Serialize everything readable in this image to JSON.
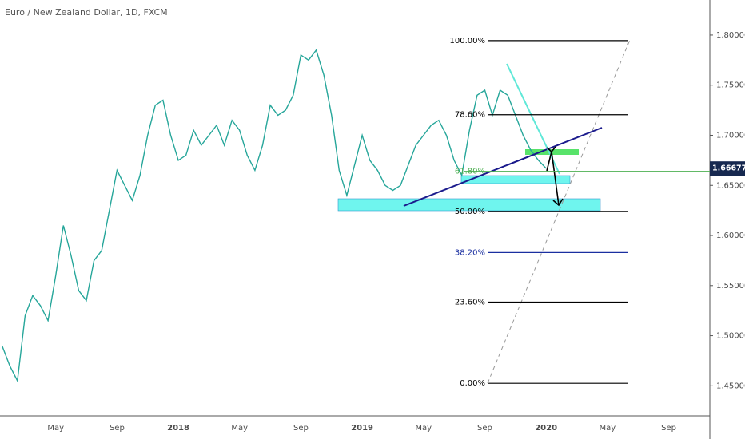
{
  "chart_data": {
    "type": "line",
    "title": "Euro / New Zealand Dollar, 1D, FXCM",
    "categories": [
      null,
      null,
      null,
      null,
      null,
      null,
      null,
      "May",
      null,
      null,
      null,
      null,
      null,
      null,
      null,
      "Sep",
      null,
      null,
      null,
      null,
      null,
      null,
      null,
      "2018",
      null,
      null,
      null,
      null,
      null,
      null,
      null,
      "May",
      null,
      null,
      null,
      null,
      null,
      null,
      null,
      "Sep",
      null,
      null,
      null,
      null,
      null,
      null,
      null,
      "2019",
      null,
      null,
      null,
      null,
      null,
      null,
      null,
      "May",
      null,
      null,
      null,
      null,
      null,
      null,
      null,
      "Sep",
      null,
      null,
      null,
      null,
      null,
      null,
      null,
      "2020",
      null,
      null,
      null,
      null,
      null,
      null,
      null,
      "May",
      null,
      null,
      null,
      null,
      null,
      null,
      null,
      "Sep",
      null,
      null,
      null,
      null
    ],
    "values": [
      1.49,
      1.47,
      1.455,
      1.52,
      1.54,
      1.53,
      1.515,
      1.56,
      1.61,
      1.58,
      1.545,
      1.535,
      1.575,
      1.585,
      1.625,
      1.665,
      1.65,
      1.635,
      1.66,
      1.7,
      1.73,
      1.735,
      1.7,
      1.675,
      1.68,
      1.705,
      1.69,
      1.7,
      1.71,
      1.69,
      1.715,
      1.705,
      1.68,
      1.665,
      1.69,
      1.73,
      1.72,
      1.725,
      1.74,
      1.78,
      1.775,
      1.785,
      1.76,
      1.72,
      1.665,
      1.64,
      1.67,
      1.7,
      1.675,
      1.665,
      1.65,
      1.645,
      1.65,
      1.67,
      1.69,
      1.7,
      1.71,
      1.715,
      1.7,
      1.675,
      1.66,
      1.705,
      1.74,
      1.745,
      1.72,
      1.745,
      1.74,
      1.72,
      1.7,
      1.685,
      1.675,
      1.667,
      null,
      null,
      null,
      null,
      null,
      null,
      null,
      null,
      null,
      null,
      null,
      null,
      null,
      null,
      null,
      null,
      null,
      null,
      null,
      null
    ],
    "color": "#26a69a",
    "ylim": [
      1.42,
      1.835
    ],
    "yticks": [
      {
        "value": 1.45,
        "label": "1.45000"
      },
      {
        "value": 1.5,
        "label": "1.50000"
      },
      {
        "value": 1.55,
        "label": "1.55000"
      },
      {
        "value": 1.6,
        "label": "1.60000"
      },
      {
        "value": 1.65,
        "label": "1.65000"
      },
      {
        "value": 1.7,
        "label": "1.70000"
      },
      {
        "value": 1.75,
        "label": "1.75000"
      },
      {
        "value": 1.8,
        "label": "1.80000"
      }
    ],
    "last_price": 1.66677,
    "fib_levels": [
      {
        "label": "100.00%",
        "value": 1.7945,
        "color": "#000000"
      },
      {
        "label": "78.60%",
        "value": 1.7205,
        "color": "#000000"
      },
      {
        "label": "61.80%",
        "value": 1.664,
        "color": "#4caf50"
      },
      {
        "label": "50.00%",
        "value": 1.624,
        "color": "#000000"
      },
      {
        "label": "38.20%",
        "value": 1.583,
        "color": "#1a2fa0"
      },
      {
        "label": "23.60%",
        "value": 1.5335,
        "color": "#000000"
      },
      {
        "label": "0.00%",
        "value": 1.4525,
        "color": "#000000"
      }
    ]
  }
}
